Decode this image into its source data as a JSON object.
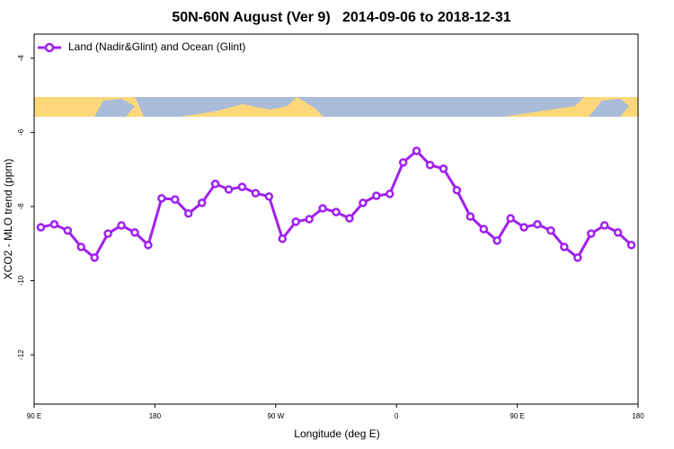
{
  "chart_data": {
    "type": "line",
    "title": "50N-60N August (Ver 9)   2014-09-06 to 2018-12-31",
    "x_label": "Longitude (deg E)",
    "y_label": "XCO2 - MLO trend (ppm)",
    "xlim": [
      90,
      540
    ],
    "xticks": [
      {
        "value": 90,
        "label": "90 E"
      },
      180,
      {
        "value": 270,
        "label": "90 W"
      },
      {
        "value": 360,
        "label": "0"
      },
      {
        "value": 450,
        "label": "90 E"
      },
      {
        "value": 540,
        "label": "180"
      }
    ],
    "ylim": [
      -13.33,
      -3.35
    ],
    "yticks": [
      -4,
      -6,
      -8,
      -10,
      -12
    ],
    "legend": "top-left",
    "x": [
      95,
      105,
      115,
      125,
      135,
      145,
      155,
      165,
      175,
      185,
      195,
      205,
      215,
      225,
      235,
      245,
      255,
      265,
      275,
      285,
      295,
      305,
      315,
      325,
      335,
      345,
      355,
      365,
      375,
      385,
      395,
      405,
      415,
      425,
      435,
      445,
      455,
      465,
      475,
      485,
      495,
      505,
      515,
      525,
      535
    ],
    "series": [
      {
        "name": "Land (Nadir&Glint) and Ocean (Glint)",
        "color": "#a020f0",
        "values": [
          -8.56,
          -8.48,
          -8.65,
          -9.09,
          -9.38,
          -8.73,
          -8.51,
          -8.7,
          -9.04,
          -7.78,
          -7.81,
          -8.19,
          -7.9,
          -7.39,
          -7.54,
          -7.47,
          -7.64,
          -7.73,
          -8.87,
          -8.41,
          -8.34,
          -8.05,
          -8.15,
          -8.32,
          -7.9,
          -7.71,
          -7.66,
          -6.81,
          -6.5,
          -6.88,
          -6.98,
          -7.56,
          -8.27,
          -8.61,
          -8.92,
          -8.32,
          -8.56,
          -8.48,
          -8.65,
          -9.09,
          -9.38,
          -8.73,
          -8.51,
          -8.7,
          -9.04
        ]
      }
    ]
  }
}
